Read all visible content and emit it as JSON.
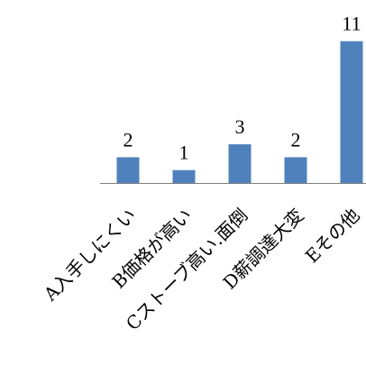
{
  "chart_data": {
    "type": "bar",
    "categories": [
      "A入手しにくい",
      "B価格が高い",
      "Cストーブ高い.面倒",
      "D薪調達大変",
      "Eその他"
    ],
    "values": [
      2,
      1,
      3,
      2,
      11
    ],
    "data_labels": [
      "2",
      "1",
      "3",
      "2",
      "11"
    ],
    "bar_color": "#4f81bd",
    "axis_color": "#7f7f7f",
    "grid": false,
    "legend": "none"
  }
}
